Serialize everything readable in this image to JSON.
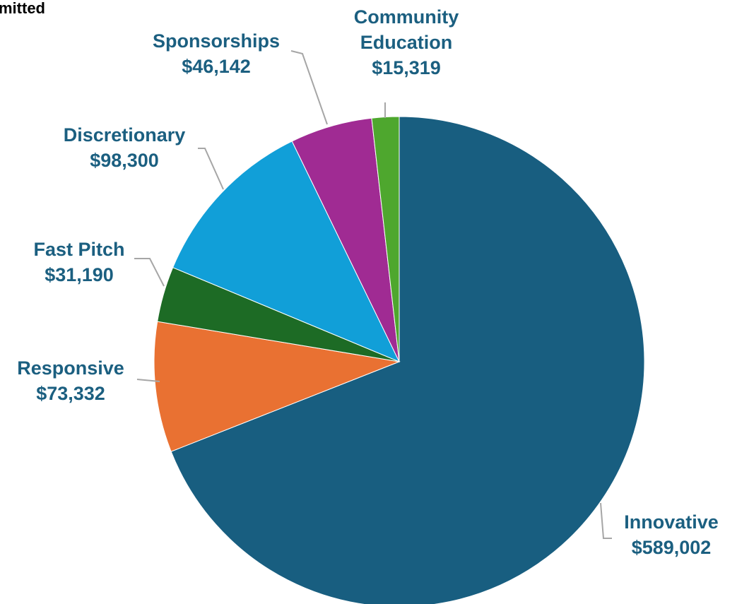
{
  "page": {
    "title_fragment": "mitted"
  },
  "chart_data": {
    "type": "pie",
    "title": "",
    "start_angle_deg": 0,
    "direction": "clockwise",
    "slices": [
      {
        "label": "Innovative",
        "value": 589002,
        "value_label": "$589,002",
        "color": "#185E80"
      },
      {
        "label": "Responsive",
        "value": 73332,
        "value_label": "$73,332",
        "color": "#E97132"
      },
      {
        "label": "Fast Pitch",
        "value": 31190,
        "value_label": "$31,190",
        "color": "#1D6B25"
      },
      {
        "label": "Discretionary",
        "value": 98300,
        "value_label": "$98,300",
        "color": "#119FD8"
      },
      {
        "label": "Sponsorships",
        "value": 46142,
        "value_label": "$46,142",
        "color": "#A02B93"
      },
      {
        "label": "Community Education",
        "label_lines": [
          "Community",
          "Education"
        ],
        "value": 15319,
        "value_label": "$15,319",
        "color": "#4EA72E"
      }
    ]
  }
}
